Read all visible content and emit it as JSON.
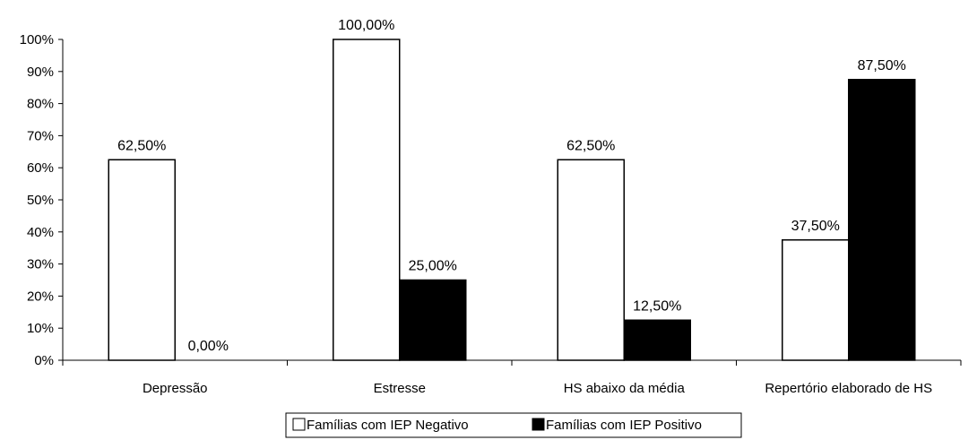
{
  "chart_data": {
    "type": "bar",
    "categories": [
      "Depressão",
      "Estresse",
      "HS abaixo da média",
      "Repertório elaborado de HS"
    ],
    "series": [
      {
        "name": "Famílias com IEP Negativo",
        "values": [
          62.5,
          100.0,
          62.5,
          37.5
        ],
        "labels": [
          "62,50%",
          "100,00%",
          "62,50%",
          "37,50%"
        ],
        "color": "#ffffff"
      },
      {
        "name": "Famílias com IEP Positivo",
        "values": [
          0.0,
          25.0,
          12.5,
          87.5
        ],
        "labels": [
          "0,00%",
          "25,00%",
          "12,50%",
          "87,50%"
        ],
        "color": "#000000"
      }
    ],
    "yticks": [
      "0%",
      "10%",
      "20%",
      "30%",
      "40%",
      "50%",
      "60%",
      "70%",
      "80%",
      "90%",
      "100%"
    ],
    "ylim": [
      0,
      100
    ],
    "grid": false,
    "legend_position": "bottom"
  }
}
